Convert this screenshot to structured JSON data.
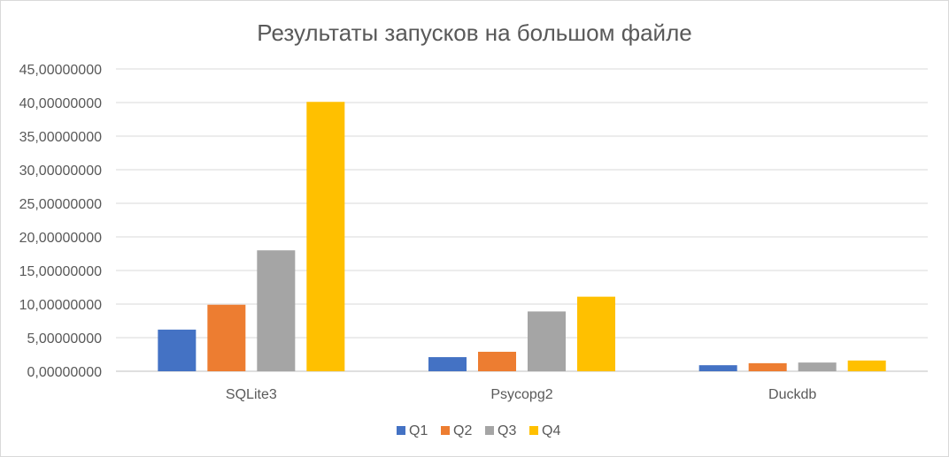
{
  "chart_data": {
    "type": "bar",
    "title": "Результаты запусков на большом файле",
    "xlabel": "",
    "ylabel": "",
    "categories": [
      "SQLite3",
      "Psycopg2",
      "Duckdb"
    ],
    "series": [
      {
        "name": "Q1",
        "color": "#4472C4",
        "values": [
          6.2,
          2.1,
          0.9
        ]
      },
      {
        "name": "Q2",
        "color": "#ED7D31",
        "values": [
          9.9,
          2.9,
          1.2
        ]
      },
      {
        "name": "Q3",
        "color": "#A5A5A5",
        "values": [
          18.0,
          8.9,
          1.3
        ]
      },
      {
        "name": "Q4",
        "color": "#FFC000",
        "values": [
          40.1,
          11.1,
          1.6
        ]
      }
    ],
    "ylim": [
      0,
      45
    ],
    "yticks": [
      "0,00000000",
      "5,00000000",
      "10,00000000",
      "15,00000000",
      "20,00000000",
      "25,00000000",
      "30,00000000",
      "35,00000000",
      "40,00000000",
      "45,00000000"
    ],
    "ytick_values": [
      0,
      5,
      10,
      15,
      20,
      25,
      30,
      35,
      40,
      45
    ],
    "grid": true,
    "legend_position": "bottom"
  }
}
